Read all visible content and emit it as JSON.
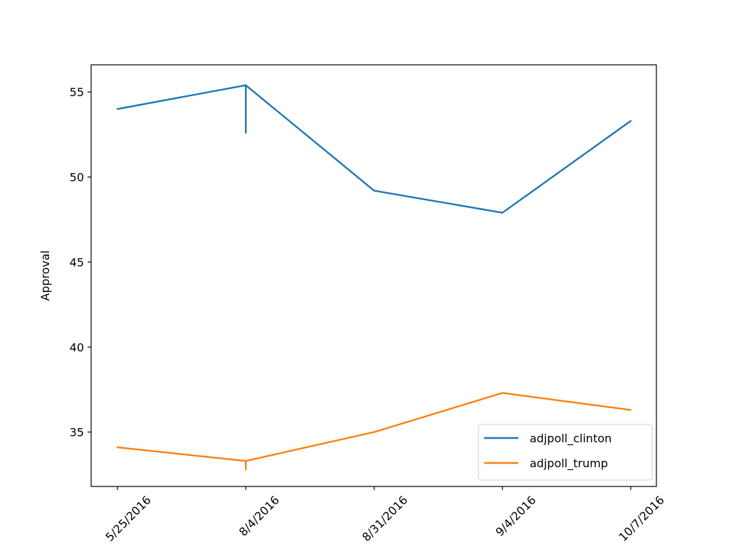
{
  "chart_data": {
    "type": "line",
    "title": "",
    "xlabel": "",
    "ylabel": "Approval",
    "categories": [
      "…/25/2016",
      "…/4/2016",
      "…31/2016",
      "…/4/2016",
      "…/7/2016"
    ],
    "x_tick_labels_visible": [
      "25/2016",
      "/4/2016",
      "31/2016",
      "/4/2016",
      "/7/2016"
    ],
    "ylim": [
      31.8,
      56.6
    ],
    "yticks": [
      35,
      40,
      45,
      50,
      55
    ],
    "grid": false,
    "legend_position": "lower right",
    "series": [
      {
        "name": "adjpoll_clinton",
        "color": "#1f77b4",
        "values": [
          54.0,
          55.4,
          49.2,
          47.9,
          53.3
        ],
        "extra_points": [
          {
            "x_index": 1,
            "value": 52.6
          }
        ]
      },
      {
        "name": "adjpoll_trump",
        "color": "#ff7f0e",
        "values": [
          34.1,
          33.3,
          35.0,
          37.3,
          36.3
        ],
        "extra_points": [
          {
            "x_index": 1,
            "value": 32.8
          }
        ]
      }
    ]
  },
  "legend": {
    "items": [
      {
        "label": "adjpoll_clinton",
        "color": "#1f77b4"
      },
      {
        "label": "adjpoll_trump",
        "color": "#ff7f0e"
      }
    ]
  },
  "axis": {
    "ylabel": "Approval",
    "yticks": [
      "35",
      "40",
      "45",
      "50",
      "55"
    ],
    "xticks": [
      "5/25/2016",
      "8/4/2016",
      "8/31/2016",
      "9/4/2016",
      "10/7/2016"
    ]
  }
}
